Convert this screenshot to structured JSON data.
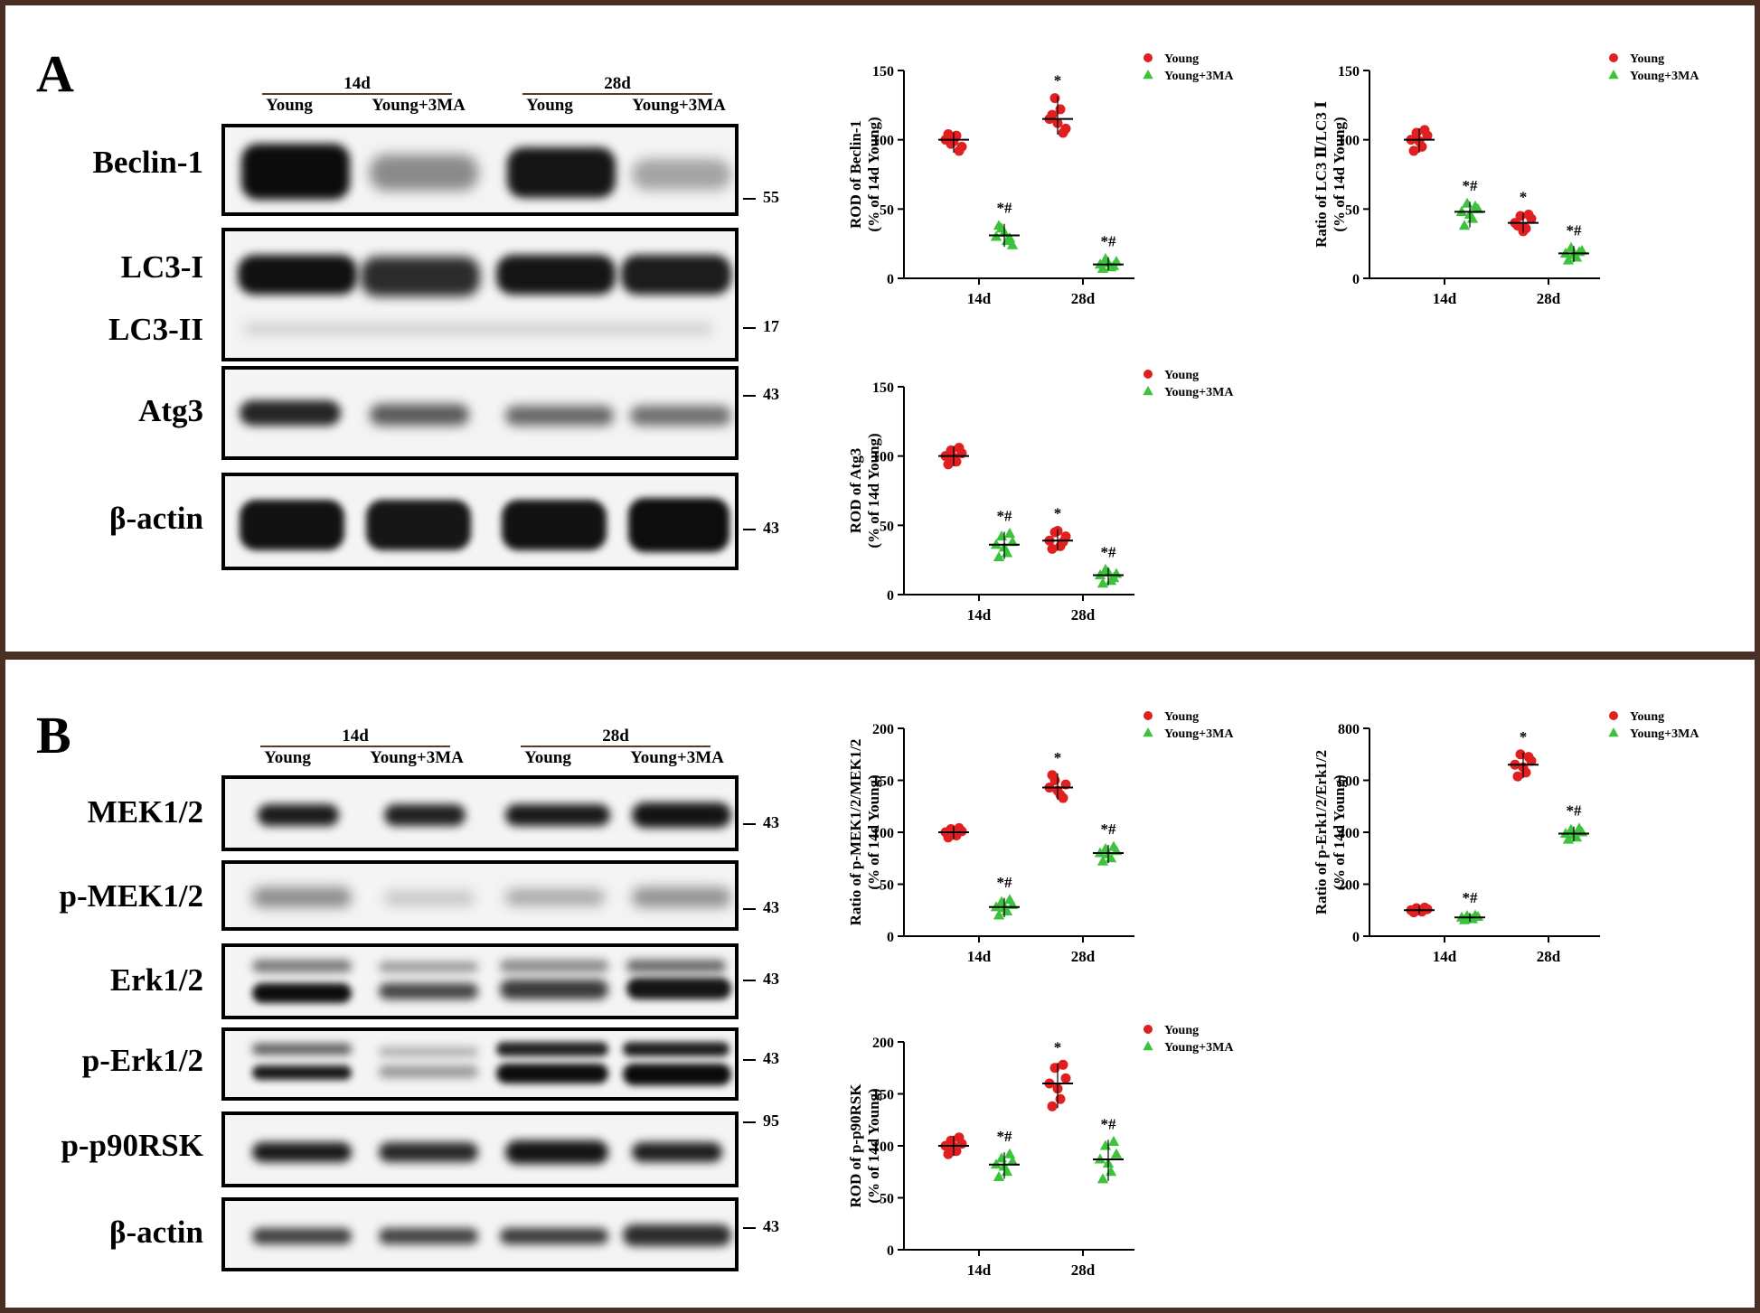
{
  "panels": {
    "A": {
      "letter": "A",
      "groups": [
        "14d",
        "28d"
      ],
      "lanes": [
        "Young",
        "Young+3MA",
        "Young",
        "Young+3MA"
      ],
      "proteins": [
        "Beclin-1",
        "LC3-I",
        "LC3-II",
        "Atg3",
        "β-actin"
      ],
      "mw": [
        "55",
        "17",
        "43",
        "43"
      ]
    },
    "B": {
      "letter": "B",
      "groups": [
        "14d",
        "28d"
      ],
      "lanes": [
        "Young",
        "Young+3MA",
        "Young",
        "Young+3MA"
      ],
      "proteins": [
        "MEK1/2",
        "p-MEK1/2",
        "Erk1/2",
        "p-Erk1/2",
        "p-p90RSK",
        "β-actin"
      ],
      "mw": [
        "43",
        "43",
        "43",
        "43",
        "95",
        "43"
      ]
    }
  },
  "colors": {
    "frame": "#4a2f24",
    "young": "#e02020",
    "young3ma": "#3cc23c"
  },
  "chart_data": [
    {
      "type": "scatter",
      "ylabel": "ROD of Beclin-1\n(% of 14d Young)",
      "categories": [
        "14d",
        "28d"
      ],
      "ylim": [
        0,
        150
      ],
      "yticks": [
        0,
        50,
        100,
        150
      ],
      "legend": "top-right",
      "series": [
        {
          "name": "Young",
          "marker": "circle",
          "values": [
            [
              100,
              97,
              103,
              95,
              104,
              99,
              92
            ],
            [
              115,
              130,
              122,
              108,
              118,
              112,
              105
            ]
          ],
          "means": [
            100,
            115
          ],
          "annotations": [
            "",
            "*"
          ]
        },
        {
          "name": "Young+3MA",
          "marker": "triangle",
          "values": [
            [
              30,
              36,
              27,
              24,
              38,
              33,
              29
            ],
            [
              10,
              14,
              8,
              12,
              7,
              11,
              9
            ]
          ],
          "means": [
            31,
            10
          ],
          "annotations": [
            "*#",
            "*#"
          ]
        }
      ]
    },
    {
      "type": "scatter",
      "ylabel": "Ratio of LC3 Ⅱ/LC3 Ⅰ\n(% of 14d Young)",
      "categories": [
        "14d",
        "28d"
      ],
      "ylim": [
        0,
        150
      ],
      "yticks": [
        0,
        50,
        100,
        150
      ],
      "legend": "top-right",
      "series": [
        {
          "name": "Young",
          "marker": "circle",
          "values": [
            [
              100,
              105,
              95,
              103,
              92,
              99,
              107
            ],
            [
              40,
              45,
              36,
              43,
              38,
              34,
              46
            ]
          ],
          "means": [
            100,
            40
          ],
          "annotations": [
            "",
            "*"
          ]
        },
        {
          "name": "Young+3MA",
          "marker": "triangle",
          "values": [
            [
              48,
              54,
              43,
              50,
              38,
              46,
              52
            ],
            [
              18,
              22,
              15,
              20,
              13,
              17,
              19
            ]
          ],
          "means": [
            48,
            18
          ],
          "annotations": [
            "*#",
            "*#"
          ]
        }
      ]
    },
    {
      "type": "scatter",
      "ylabel": "ROD of Atg3\n(% of 14d Young)",
      "categories": [
        "14d",
        "28d"
      ],
      "ylim": [
        0,
        150
      ],
      "yticks": [
        0,
        50,
        100,
        150
      ],
      "legend": "top-right",
      "series": [
        {
          "name": "Young",
          "marker": "circle",
          "values": [
            [
              100,
              104,
              96,
              102,
              94,
              99,
              106
            ],
            [
              39,
              45,
              35,
              42,
              33,
              46,
              38
            ]
          ],
          "means": [
            100,
            39
          ],
          "annotations": [
            "",
            "*"
          ]
        },
        {
          "name": "Young+3MA",
          "marker": "triangle",
          "values": [
            [
              36,
              42,
              30,
              38,
              27,
              34,
              44
            ],
            [
              14,
              18,
              10,
              15,
              8,
              16,
              12
            ]
          ],
          "means": [
            36,
            14
          ],
          "annotations": [
            "*#",
            "*#"
          ]
        }
      ]
    },
    {
      "type": "scatter",
      "ylabel": "Ratio of p-MEK1/2/MEK1/2\n(% of 14d Young)",
      "categories": [
        "14d",
        "28d"
      ],
      "ylim": [
        0,
        200
      ],
      "yticks": [
        0,
        50,
        100,
        150,
        200
      ],
      "legend": "top-right",
      "series": [
        {
          "name": "Young",
          "marker": "circle",
          "values": [
            [
              100,
              103,
              97,
              101,
              95,
              99,
              104
            ],
            [
              143,
              150,
              136,
              146,
              155,
              140,
              133
            ]
          ],
          "means": [
            100,
            143
          ],
          "annotations": [
            "",
            "*"
          ]
        },
        {
          "name": "Young+3MA",
          "marker": "triangle",
          "values": [
            [
              28,
              33,
              24,
              30,
              20,
              27,
              35
            ],
            [
              80,
              84,
              75,
              82,
              72,
              79,
              86
            ]
          ],
          "means": [
            28,
            80
          ],
          "annotations": [
            "*#",
            "*#"
          ]
        }
      ]
    },
    {
      "type": "scatter",
      "ylabel": "Ratio of p-Erk1/2/Erk1/2\n(% of 14d Young)",
      "categories": [
        "14d",
        "28d"
      ],
      "ylim": [
        0,
        800
      ],
      "yticks": [
        0,
        200,
        400,
        600,
        800
      ],
      "legend": "top-right",
      "series": [
        {
          "name": "Young",
          "marker": "circle",
          "values": [
            [
              100,
              108,
              95,
              104,
              92,
              99,
              110
            ],
            [
              660,
              700,
              630,
              675,
              615,
              650,
              690
            ]
          ],
          "means": [
            100,
            660
          ],
          "annotations": [
            "",
            "*"
          ]
        },
        {
          "name": "Young+3MA",
          "marker": "triangle",
          "values": [
            [
              72,
              78,
              66,
              75,
              62,
              70,
              80
            ],
            [
              395,
              410,
              380,
              400,
              372,
              390,
              415
            ]
          ],
          "means": [
            72,
            395
          ],
          "annotations": [
            "*#",
            "*#"
          ]
        }
      ]
    },
    {
      "type": "scatter",
      "ylabel": "ROD of p-p90RSK\n(% of 14d Young)",
      "categories": [
        "14d",
        "28d"
      ],
      "ylim": [
        0,
        200
      ],
      "yticks": [
        0,
        50,
        100,
        150,
        200
      ],
      "legend": "top-right",
      "series": [
        {
          "name": "Young",
          "marker": "circle",
          "values": [
            [
              100,
              105,
              95,
              102,
              92,
              99,
              108
            ],
            [
              160,
              175,
              145,
              165,
              138,
              155,
              178
            ]
          ],
          "means": [
            100,
            160
          ],
          "annotations": [
            "",
            "*"
          ]
        },
        {
          "name": "Young+3MA",
          "marker": "triangle",
          "values": [
            [
              82,
              88,
              75,
              85,
              70,
              80,
              92
            ],
            [
              87,
              100,
              75,
              92,
              68,
              83,
              104
            ]
          ],
          "means": [
            82,
            87
          ],
          "annotations": [
            "*#",
            "*#"
          ]
        }
      ]
    }
  ]
}
